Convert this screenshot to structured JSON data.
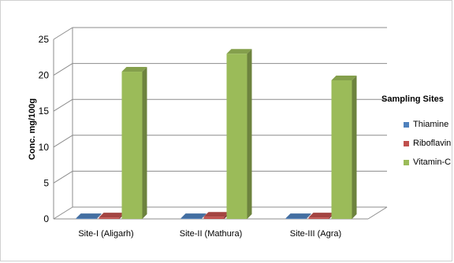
{
  "chart_data": {
    "type": "bar",
    "title": "",
    "xlabel": "",
    "ylabel": "Conc. mg/100g",
    "ylim": [
      0,
      25
    ],
    "yticks": [
      0,
      5,
      10,
      15,
      20,
      25
    ],
    "grid": true,
    "legend_position": "right",
    "legend_title": "Sampling Sites",
    "categories": [
      "Site-I (Aligarh)",
      "Site-II (Mathura)",
      "Site-III (Agra)"
    ],
    "series": [
      {
        "name": "Thiamine",
        "values": [
          0.1,
          0.1,
          0.1
        ],
        "color": "#4f81bd"
      },
      {
        "name": "Riboflavin",
        "values": [
          0.2,
          0.3,
          0.2
        ],
        "color": "#c0504d"
      },
      {
        "name": "Vitamin-C",
        "values": [
          20.5,
          23.0,
          19.3
        ],
        "color": "#9bbb59"
      }
    ]
  }
}
